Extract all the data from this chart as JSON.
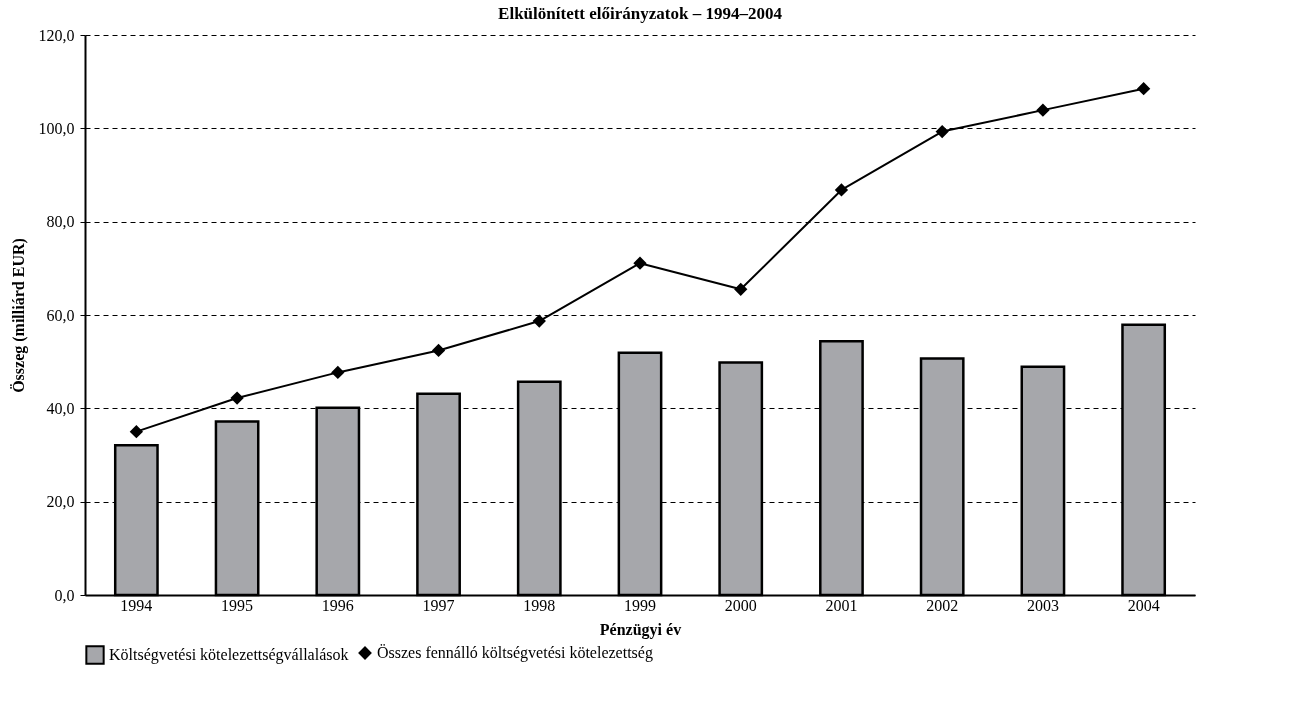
{
  "chart_data": {
    "type": "bar",
    "title": "Elkülönített előirányzatok – 1994–2004",
    "xlabel": "Pénzügyi év",
    "ylabel": "Összeg (milliárd EUR)",
    "categories": [
      "1994",
      "1995",
      "1996",
      "1997",
      "1998",
      "1999",
      "2000",
      "2001",
      "2002",
      "2003",
      "2004"
    ],
    "series": [
      {
        "name": "Költségvetési kötelezettségvállalások",
        "color": "#a6a7ab",
        "values": [
          32.1,
          37.2,
          40.1,
          43.1,
          45.7,
          51.9,
          49.8,
          54.4,
          50.7,
          48.9,
          57.9
        ]
      },
      {
        "name": "Összes fennálló költségvetési kötelezettség",
        "color": "#000000",
        "type": "line",
        "marker": "diamond",
        "values": [
          35.0,
          42.2,
          47.7,
          52.4,
          58.7,
          71.1,
          65.5,
          86.8,
          99.3,
          103.9,
          108.5
        ]
      }
    ],
    "ylim": [
      0,
      120
    ],
    "yticks": [
      {
        "value": 0,
        "label": "0,0"
      },
      {
        "value": 20,
        "label": "20,0"
      },
      {
        "value": 40,
        "label": "40,0"
      },
      {
        "value": 60,
        "label": "60,0"
      },
      {
        "value": 80,
        "label": "80,0"
      },
      {
        "value": 100,
        "label": "100,0"
      },
      {
        "value": 120,
        "label": "120,0"
      }
    ],
    "grid": "y",
    "legend": "bottom"
  }
}
